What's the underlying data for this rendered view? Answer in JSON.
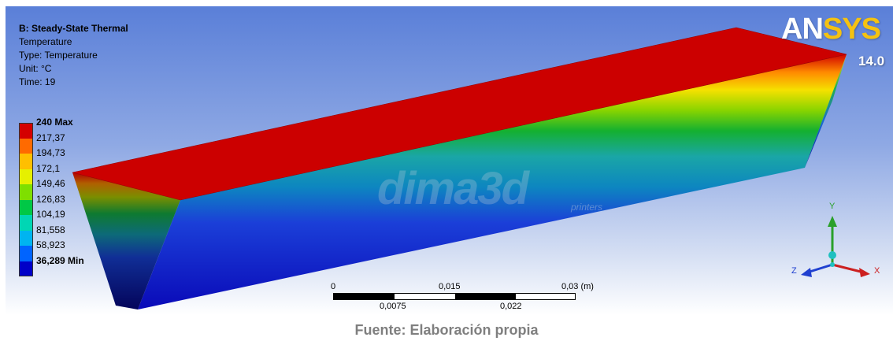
{
  "info": {
    "title": "B: Steady-State Thermal",
    "result": "Temperature",
    "type": "Type: Temperature",
    "unit": "Unit: °C",
    "time": "Time: 19"
  },
  "legend": [
    {
      "label": "240 Max",
      "color": "#d40000",
      "bold": true
    },
    {
      "label": "217,37",
      "color": "#ff6a00",
      "bold": false
    },
    {
      "label": "194,73",
      "color": "#ffbf00",
      "bold": false
    },
    {
      "label": "172,1",
      "color": "#e6f000",
      "bold": false
    },
    {
      "label": "149,46",
      "color": "#7fdf00",
      "bold": false
    },
    {
      "label": "126,83",
      "color": "#00c846",
      "bold": false
    },
    {
      "label": "104,19",
      "color": "#00d6b4",
      "bold": false
    },
    {
      "label": "81,558",
      "color": "#00b4f0",
      "bold": false
    },
    {
      "label": "58,923",
      "color": "#0064ff",
      "bold": false
    },
    {
      "label": "36,289 Min",
      "color": "#0000c8",
      "bold": true
    }
  ],
  "logo": {
    "prefix": "AN",
    "suffix": "SYS",
    "version": "14.0"
  },
  "scale": {
    "top_labels": [
      "0",
      "0,015",
      "0,03 (m)"
    ],
    "bottom_labels": [
      "0,0075",
      "0,022"
    ]
  },
  "triad": {
    "x": "X",
    "y": "Y",
    "z": "Z"
  },
  "watermark": {
    "main": "dima3d",
    "sub": "printers"
  },
  "caption": "Fuente: Elaboración propia"
}
